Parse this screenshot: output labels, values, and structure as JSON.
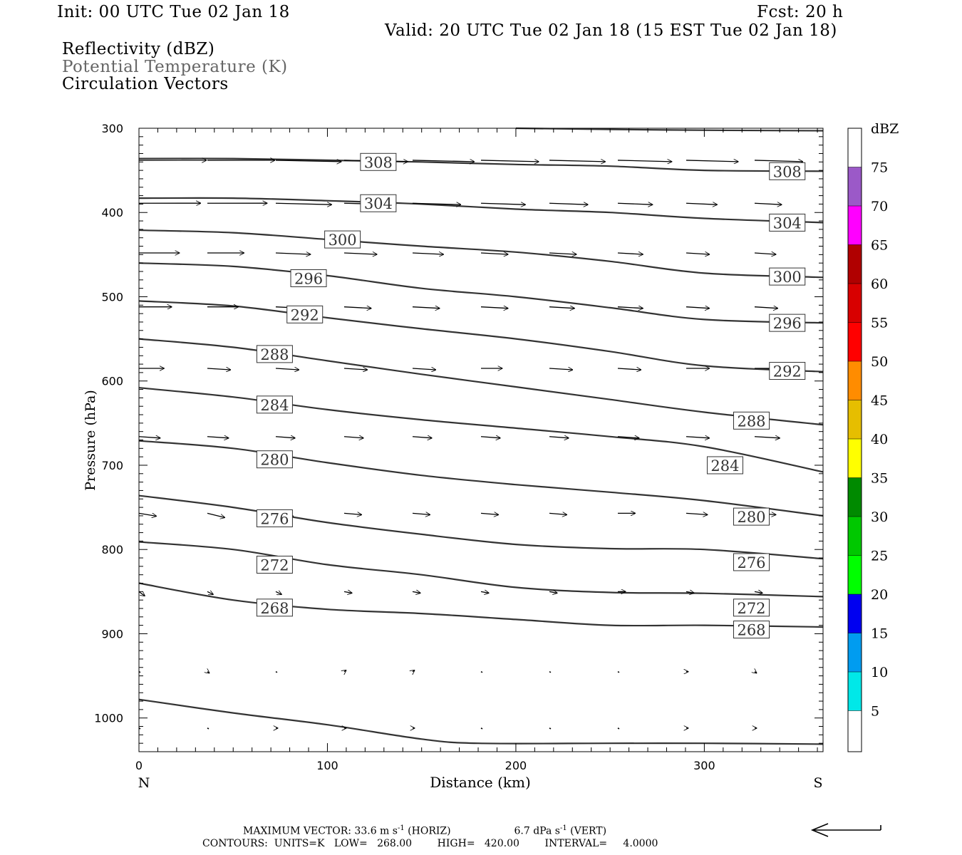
{
  "header": {
    "init": "Init: 00 UTC Tue 02 Jan 18",
    "fcst": "Fcst:   20 h",
    "valid": "Valid: 20 UTC Tue 02 Jan 18 (15 EST Tue 02 Jan 18)",
    "fields": [
      "Reflectivity (dBZ)",
      "Potential Temperature (K)",
      "Circulation Vectors"
    ]
  },
  "footer": {
    "line1_a": "MAXIMUM VECTOR:  33.6 m s",
    "line1_b": " (HORIZ)",
    "line1_c": "6.7 dPa s",
    "line1_d": " (VERT)",
    "exp": "-1",
    "line2": "CONTOURS:  UNITS=K   LOW=   268.00        HIGH=   420.00        INTERVAL=     4.0000"
  },
  "colors": {
    "contour": "#333333",
    "vector": "#000000",
    "field_label_gray": "#666666"
  },
  "chart_data": {
    "type": "cross-section",
    "xlabel": "Distance (km)",
    "ylabel": "Pressure (hPa)",
    "xlim": [
      0,
      363
    ],
    "ylim": [
      1040,
      300
    ],
    "x_ticks": [
      0,
      100,
      200,
      300
    ],
    "y_ticks": [
      300,
      400,
      500,
      600,
      700,
      800,
      900,
      1000
    ],
    "x_end_labels": {
      "left": "N",
      "right": "S"
    },
    "colorbar": {
      "title": "dBZ",
      "labels": [
        "5",
        "10",
        "15",
        "20",
        "25",
        "30",
        "35",
        "40",
        "45",
        "50",
        "55",
        "60",
        "65",
        "70",
        "75"
      ],
      "colors": [
        "#ffffff",
        "#00e8e8",
        "#009cf0",
        "#0000f0",
        "#00ff00",
        "#00c800",
        "#008a00",
        "#ffff00",
        "#e6be00",
        "#ff8c00",
        "#ff0000",
        "#d80000",
        "#b00000",
        "#ff00ff",
        "#9b59c8",
        "#ffffff"
      ]
    },
    "isentropes": [
      {
        "theta": null,
        "x": [
          200,
          280,
          363
        ],
        "p": [
          300,
          302,
          303
        ]
      },
      {
        "theta": 308,
        "x": [
          0,
          50,
          100,
          150,
          200,
          250,
          300,
          363
        ],
        "p": [
          336,
          336,
          338,
          340,
          343,
          345,
          350,
          351
        ]
      },
      {
        "theta": 304,
        "x": [
          0,
          50,
          100,
          150,
          200,
          250,
          300,
          363
        ],
        "p": [
          383,
          383,
          386,
          390,
          396,
          400,
          407,
          412
        ]
      },
      {
        "theta": 300,
        "x": [
          0,
          50,
          100,
          150,
          200,
          250,
          300,
          363
        ],
        "p": [
          421,
          424,
          432,
          440,
          447,
          458,
          472,
          477
        ]
      },
      {
        "theta": 296,
        "x": [
          0,
          50,
          100,
          150,
          200,
          250,
          300,
          363
        ],
        "p": [
          460,
          464,
          475,
          490,
          500,
          513,
          527,
          531
        ]
      },
      {
        "theta": 292,
        "x": [
          0,
          50,
          100,
          150,
          200,
          250,
          300,
          363
        ],
        "p": [
          505,
          511,
          525,
          538,
          550,
          565,
          582,
          589
        ]
      },
      {
        "theta": 288,
        "x": [
          0,
          50,
          100,
          150,
          200,
          250,
          300,
          363
        ],
        "p": [
          550,
          560,
          576,
          592,
          607,
          622,
          637,
          652
        ]
      },
      {
        "theta": 284,
        "x": [
          0,
          50,
          100,
          150,
          200,
          250,
          300,
          363
        ],
        "p": [
          608,
          619,
          634,
          646,
          656,
          666,
          678,
          708
        ]
      },
      {
        "theta": 280,
        "x": [
          0,
          50,
          100,
          150,
          200,
          250,
          300,
          363
        ],
        "p": [
          671,
          680,
          697,
          712,
          723,
          732,
          742,
          760
        ]
      },
      {
        "theta": 276,
        "x": [
          0,
          50,
          100,
          150,
          200,
          250,
          300,
          363
        ],
        "p": [
          736,
          750,
          768,
          782,
          794,
          799,
          800,
          811
        ]
      },
      {
        "theta": 272,
        "x": [
          0,
          50,
          100,
          150,
          200,
          250,
          300,
          363
        ],
        "p": [
          791,
          800,
          818,
          830,
          845,
          851,
          852,
          856
        ]
      },
      {
        "theta": 268,
        "x": [
          0,
          50,
          100,
          150,
          200,
          250,
          300,
          363
        ],
        "p": [
          840,
          860,
          871,
          876,
          883,
          890,
          890,
          892
        ]
      },
      {
        "theta": null,
        "x": [
          0,
          50,
          100,
          150,
          180,
          250,
          300,
          363
        ],
        "p": [
          978,
          994,
          1008,
          1025,
          1030,
          1030,
          1030,
          1031
        ]
      }
    ],
    "contour_labels": [
      {
        "theta": 308,
        "x": 127,
        "p": 340
      },
      {
        "theta": 308,
        "x": 344,
        "p": 351
      },
      {
        "theta": 304,
        "x": 127,
        "p": 389
      },
      {
        "theta": 304,
        "x": 344,
        "p": 412
      },
      {
        "theta": 300,
        "x": 108,
        "p": 432
      },
      {
        "theta": 300,
        "x": 344,
        "p": 476
      },
      {
        "theta": 296,
        "x": 90,
        "p": 478
      },
      {
        "theta": 296,
        "x": 344,
        "p": 531
      },
      {
        "theta": 292,
        "x": 88,
        "p": 521
      },
      {
        "theta": 292,
        "x": 344,
        "p": 588
      },
      {
        "theta": 288,
        "x": 72,
        "p": 568
      },
      {
        "theta": 288,
        "x": 325,
        "p": 647
      },
      {
        "theta": 284,
        "x": 72,
        "p": 628
      },
      {
        "theta": 284,
        "x": 311,
        "p": 700
      },
      {
        "theta": 280,
        "x": 72,
        "p": 693
      },
      {
        "theta": 280,
        "x": 325,
        "p": 761
      },
      {
        "theta": 276,
        "x": 72,
        "p": 763
      },
      {
        "theta": 276,
        "x": 325,
        "p": 815
      },
      {
        "theta": 272,
        "x": 72,
        "p": 818
      },
      {
        "theta": 272,
        "x": 325,
        "p": 869
      },
      {
        "theta": 268,
        "x": 72,
        "p": 869
      },
      {
        "theta": 268,
        "x": 325,
        "p": 895
      }
    ],
    "vectors": {
      "x": [
        0,
        36.3,
        72.6,
        108.9,
        145.2,
        181.5,
        217.8,
        254.1,
        290.4,
        326.7
      ],
      "rows": [
        {
          "p": 338,
          "u": [
            35,
            35,
            34,
            33,
            32,
            30,
            29,
            28,
            27,
            25
          ],
          "w": [
            0,
            0,
            -1,
            -1,
            -1,
            -1,
            -1,
            -1,
            -1,
            -1
          ]
        },
        {
          "p": 389,
          "u": [
            32,
            31,
            29,
            27,
            25,
            23,
            20,
            18,
            16,
            14
          ],
          "w": [
            0,
            0,
            -1,
            -1,
            -1,
            -1,
            -1,
            -1,
            -1,
            -1
          ]
        },
        {
          "p": 448,
          "u": [
            21,
            19,
            18,
            17,
            16,
            14,
            14,
            13,
            12,
            11
          ],
          "w": [
            0,
            0,
            -1,
            -1,
            -1,
            -1,
            -1,
            -1,
            -1,
            -1
          ]
        },
        {
          "p": 512,
          "u": [
            17,
            16,
            15,
            14,
            14,
            14,
            13,
            13,
            12,
            12
          ],
          "w": [
            0,
            0,
            -1,
            -1,
            -1,
            -1,
            -1,
            -1,
            -1,
            -1
          ]
        },
        {
          "p": 585,
          "u": [
            13,
            12,
            12,
            12,
            12,
            11,
            12,
            12,
            12,
            11
          ],
          "w": [
            0,
            -1,
            -1,
            -1,
            -1,
            0,
            -1,
            -1,
            0,
            0
          ]
        },
        {
          "p": 666,
          "u": [
            11,
            11,
            10,
            10,
            10,
            10,
            10,
            11,
            12,
            13
          ],
          "w": [
            -1,
            -1,
            -1,
            -1,
            -1,
            -1,
            -1,
            -1,
            -1,
            -1
          ]
        },
        {
          "p": 757,
          "u": [
            9,
            9,
            9,
            9,
            9,
            9,
            9,
            9,
            11,
            11
          ],
          "w": [
            -2,
            -3,
            -2,
            -1,
            -1,
            -1,
            -1,
            0,
            -1,
            -1
          ]
        },
        {
          "p": 850,
          "u": [
            3,
            3,
            3,
            4,
            4,
            4,
            4,
            4,
            4,
            4
          ],
          "w": [
            -3,
            -2,
            -2,
            -1,
            -1,
            -1,
            -1,
            0,
            -1,
            -1
          ]
        },
        {
          "p": 945,
          "u": [
            0,
            1,
            0,
            1,
            1,
            0,
            0,
            0,
            1,
            1
          ],
          "w": [
            -1,
            -1,
            -1,
            1,
            1,
            0,
            -1,
            -1,
            0,
            -1
          ]
        },
        {
          "p": 1012,
          "u": [
            0,
            0,
            1,
            1,
            1,
            0,
            0,
            0,
            1,
            1
          ],
          "w": [
            0,
            0,
            0,
            0,
            0,
            0,
            0,
            0,
            0,
            0
          ]
        }
      ]
    },
    "reference_vector_direction": "left"
  }
}
